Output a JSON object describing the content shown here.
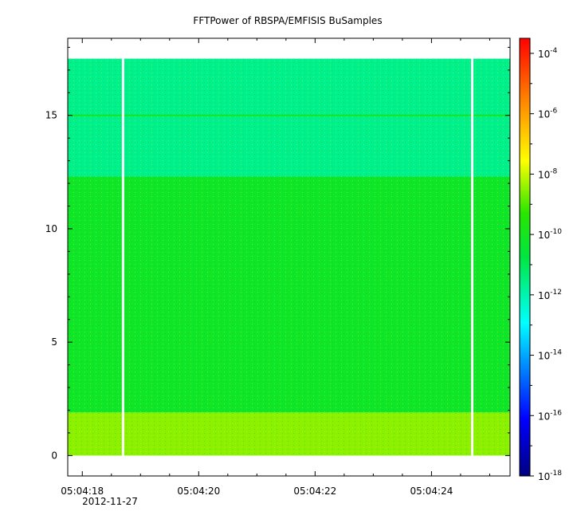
{
  "chart_data": {
    "type": "heatmap",
    "title": "FFTPower of RBSPA/EMFISIS  BuSamples",
    "xlabel": "",
    "ylabel": "",
    "x_tick_labels": [
      "05:04:18",
      "05:04:20",
      "05:04:22",
      "05:04:24"
    ],
    "x_tick_values_s": [
      18,
      20,
      22,
      24
    ],
    "x_date_label": "2012-11-27",
    "xlim_s": [
      17.75,
      25.35
    ],
    "ylim": [
      -0.9,
      18.4
    ],
    "y_ticks": [
      0,
      5,
      10,
      15
    ],
    "y_tick_labels": [
      "0",
      "5",
      "10",
      "15"
    ],
    "data_ymax": 17.5,
    "gaps_x_s": [
      18.7,
      24.7
    ],
    "bands": [
      {
        "y_from": 0.0,
        "y_to": 1.9,
        "log10_power": -8.5
      },
      {
        "y_from": 1.9,
        "y_to": 12.3,
        "log10_power": -10.2
      },
      {
        "y_from": 12.3,
        "y_to": 17.5,
        "log10_power": -11.6
      }
    ],
    "line_feature": {
      "y": 15.0,
      "log10_power": -10.0
    },
    "colorbar": {
      "scale": "log",
      "range_exp": [
        -18,
        -3.5
      ],
      "tick_base": "10",
      "tick_exponents": [
        "-4",
        "-6",
        "-8",
        "-10",
        "-12",
        "-14",
        "-16",
        "-18"
      ]
    }
  }
}
